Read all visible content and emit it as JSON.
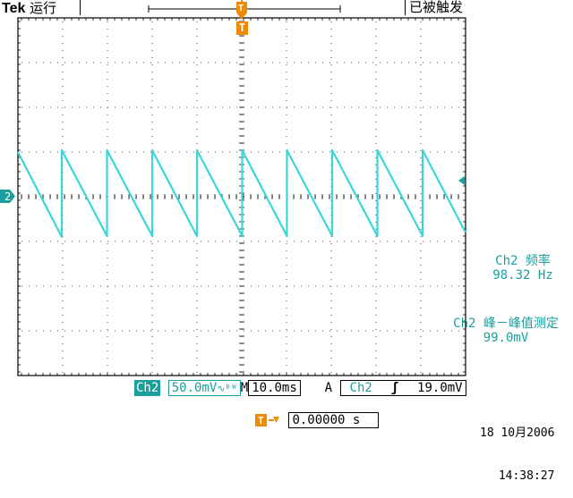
{
  "header": {
    "brand": "Tek",
    "mode": "运行",
    "status": "已被触发"
  },
  "markers": {
    "trigger": "T",
    "channel": "2"
  },
  "measurements": [
    {
      "label": "Ch2 频率",
      "value": "98.32 Hz"
    },
    {
      "label": "Ch2 峰－峰值测定",
      "value": "99.0mV"
    }
  ],
  "bottom": {
    "channel": "Ch2",
    "volts_div": "50.0mV",
    "bw_symbol": "∿ᴮᵂ",
    "m_label": "M",
    "time_div": "10.0ms",
    "a_label": "A",
    "trig_channel": "Ch2",
    "trig_slope": "ʃ",
    "trig_level": "19.0mV",
    "position": "0.00000 s"
  },
  "datetime": {
    "date": "18 10月2006",
    "time": "14:38:27"
  },
  "colors": {
    "trace": "#3cd6d6",
    "channel": "#1a9f9c",
    "trigger": "#f08a00"
  },
  "chart_data": {
    "type": "line",
    "title": "",
    "xlabel": "",
    "ylabel": "",
    "x_unit": "ms",
    "y_unit": "mV",
    "xlim": [
      -50,
      50
    ],
    "ylim": [
      -200,
      200
    ],
    "grid": true,
    "x_major_step": 10,
    "y_major_step": 50,
    "series": [
      {
        "name": "",
        "x": [
          -50.0,
          -40.2,
          -40.2,
          -30.1,
          -30.1,
          -20.0,
          -20.0,
          -10.0,
          -10.0,
          0.1,
          0.1,
          10.1,
          10.1,
          20.2,
          20.2,
          30.3,
          30.3,
          40.4,
          40.4,
          50.0
        ],
        "values": [
          50,
          -45,
          52,
          -44,
          52,
          -44,
          52,
          -44,
          52,
          -44,
          52,
          -44,
          52,
          -44,
          52,
          -44,
          52,
          -44,
          52,
          -40
        ]
      }
    ]
  }
}
